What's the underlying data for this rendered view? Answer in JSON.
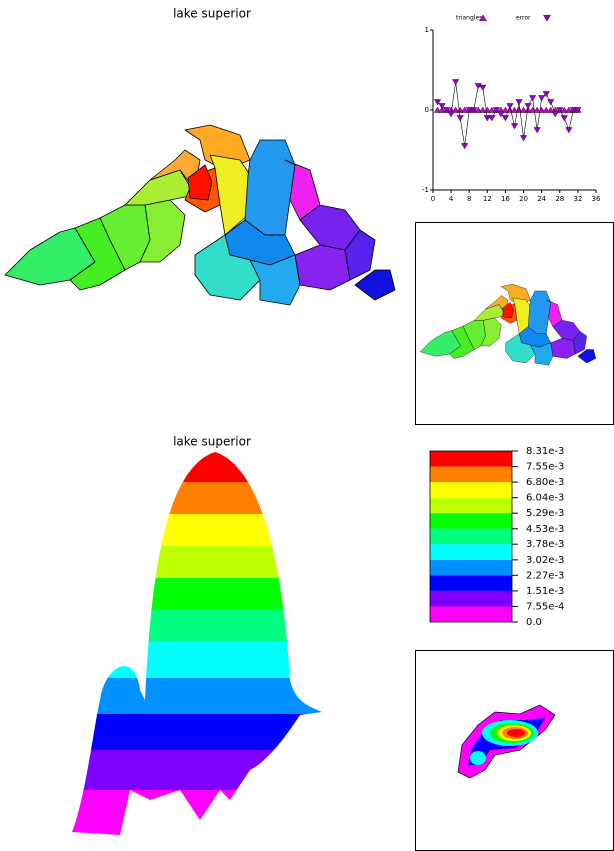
{
  "map_view": {
    "title": "lake superior"
  },
  "surface_view": {
    "title": "lake superior"
  },
  "chart_data": [
    {
      "type": "line",
      "x": [
        1,
        2,
        3,
        4,
        5,
        6,
        7,
        8,
        9,
        10,
        11,
        12,
        13,
        14,
        15,
        16,
        17,
        18,
        19,
        20,
        21,
        22,
        23,
        24,
        25,
        26,
        27,
        28,
        29,
        30,
        31,
        32
      ],
      "xlim": [
        0,
        36
      ],
      "ylim": [
        -1,
        1
      ],
      "xticks": [
        0,
        4,
        8,
        12,
        16,
        20,
        24,
        28,
        32,
        36
      ],
      "yticks": [
        -1,
        0,
        1
      ],
      "series": [
        {
          "name": "triangles",
          "color": "#cc00cc",
          "marker": "triangle-up",
          "values": [
            0,
            0,
            0,
            0,
            0,
            0,
            0,
            0,
            0,
            0,
            0,
            0,
            0,
            0,
            0,
            0,
            0,
            0,
            0,
            0,
            0,
            0,
            0,
            0,
            0,
            0,
            0,
            0,
            0,
            0,
            0,
            0
          ]
        },
        {
          "name": "error",
          "color": "#9900cc",
          "marker": "triangle-down",
          "line": true,
          "values": [
            0.1,
            0.05,
            0,
            -0.05,
            0.35,
            -0.1,
            -0.45,
            0,
            0,
            0.3,
            0.28,
            -0.1,
            -0.1,
            0,
            -0.05,
            -0.1,
            0.05,
            -0.2,
            0.1,
            -0.35,
            0.05,
            0.15,
            -0.25,
            0.15,
            0.2,
            0.1,
            -0.05,
            0,
            -0.1,
            -0.25,
            0,
            0
          ]
        }
      ]
    },
    {
      "type": "colorbar",
      "ylim": [
        0,
        0.00831
      ],
      "yticks": [
        {
          "value": 0.00831,
          "label": "8.31e-3"
        },
        {
          "value": 0.00755,
          "label": "7.55e-3"
        },
        {
          "value": 0.0068,
          "label": "6.80e-3"
        },
        {
          "value": 0.00604,
          "label": "6.04e-3"
        },
        {
          "value": 0.00529,
          "label": "5.29e-3"
        },
        {
          "value": 0.00453,
          "label": "4.53e-3"
        },
        {
          "value": 0.00378,
          "label": "3.78e-3"
        },
        {
          "value": 0.00302,
          "label": "3.02e-3"
        },
        {
          "value": 0.00227,
          "label": "2.27e-3"
        },
        {
          "value": 0.00151,
          "label": "1.51e-3"
        },
        {
          "value": 0.000755,
          "label": "7.55e-4"
        },
        {
          "value": 0,
          "label": "0.0"
        }
      ],
      "colors": [
        "#ff0000",
        "#ff8000",
        "#ffff00",
        "#c0ff00",
        "#00ff00",
        "#00ff80",
        "#00ffff",
        "#0090ff",
        "#0000ff",
        "#8000ff",
        "#ff00ff"
      ]
    }
  ]
}
